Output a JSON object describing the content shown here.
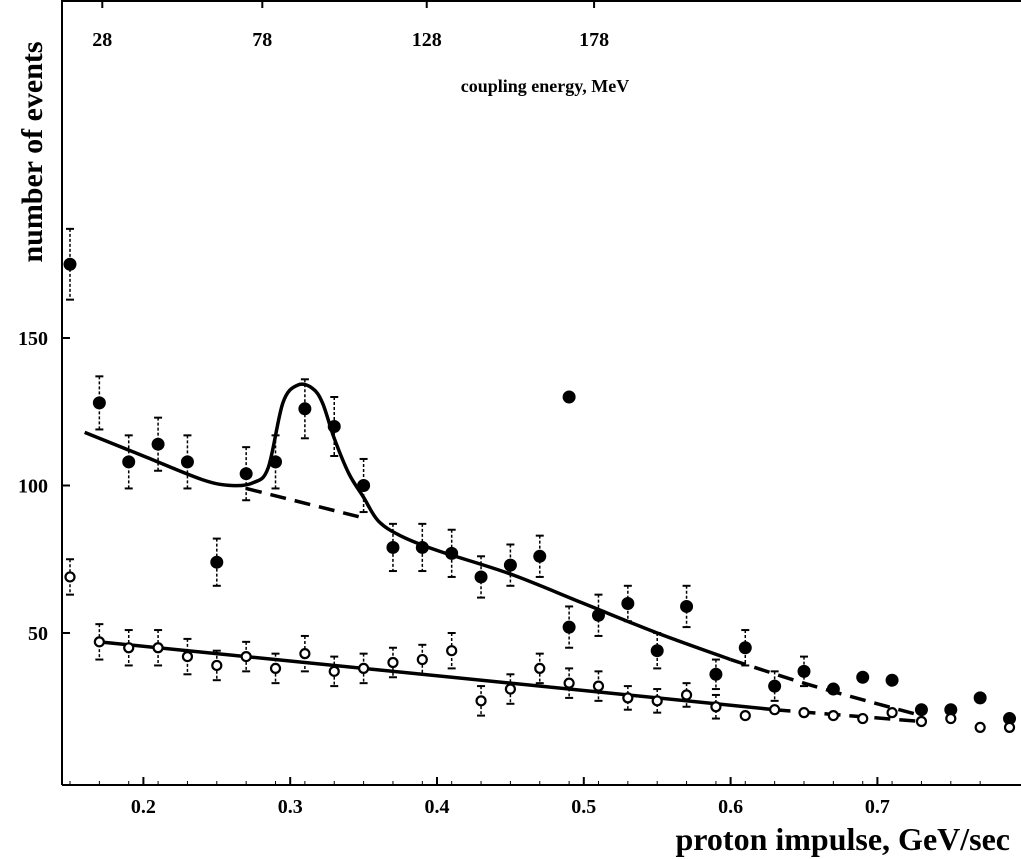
{
  "chart_data": {
    "type": "scatter",
    "title": "",
    "xlabel": "proton impulse,  GeV/sec",
    "ylabel": "number of events",
    "xlim": [
      0.14,
      0.73
    ],
    "ylim": [
      0,
      212
    ],
    "x_ticks": [
      {
        "value": 0.2,
        "label": "0.2"
      },
      {
        "value": 0.3,
        "label": "0.3"
      },
      {
        "value": 0.4,
        "label": "0.4"
      },
      {
        "value": 0.5,
        "label": "0.5"
      },
      {
        "value": 0.6,
        "label": "0.6"
      },
      {
        "value": 0.7,
        "label": "0.7"
      }
    ],
    "y_ticks": [
      {
        "value": 50,
        "label": "50"
      },
      {
        "value": 100,
        "label": "100"
      },
      {
        "value": 150,
        "label": "150"
      }
    ],
    "top_axis": {
      "label": "coupling energy,  MeV",
      "ticks": [
        {
          "x": 0.172,
          "label": "28"
        },
        {
          "x": 0.281,
          "label": "78"
        },
        {
          "x": 0.393,
          "label": "128"
        },
        {
          "x": 0.507,
          "label": "178"
        }
      ]
    },
    "grid": false,
    "legend": "none",
    "series": [
      {
        "marker": "filled",
        "points": [
          {
            "x": 0.15,
            "y": 175,
            "err": 12
          },
          {
            "x": 0.17,
            "y": 128,
            "err": 9
          },
          {
            "x": 0.19,
            "y": 108,
            "err": 9
          },
          {
            "x": 0.21,
            "y": 114,
            "err": 9
          },
          {
            "x": 0.23,
            "y": 108,
            "err": 9
          },
          {
            "x": 0.25,
            "y": 74,
            "err": 8
          },
          {
            "x": 0.27,
            "y": 104,
            "err": 9
          },
          {
            "x": 0.29,
            "y": 108,
            "err": 9
          },
          {
            "x": 0.31,
            "y": 126,
            "err": 10
          },
          {
            "x": 0.33,
            "y": 120,
            "err": 10
          },
          {
            "x": 0.35,
            "y": 100,
            "err": 9
          },
          {
            "x": 0.37,
            "y": 79,
            "err": 8
          },
          {
            "x": 0.39,
            "y": 79,
            "err": 8
          },
          {
            "x": 0.41,
            "y": 77,
            "err": 8
          },
          {
            "x": 0.43,
            "y": 69,
            "err": 7
          },
          {
            "x": 0.45,
            "y": 73,
            "err": 7
          },
          {
            "x": 0.47,
            "y": 76,
            "err": 7
          },
          {
            "x": 0.49,
            "y": 130,
            "err": 0
          },
          {
            "x": 0.49,
            "y": 52,
            "err": 7
          },
          {
            "x": 0.51,
            "y": 56,
            "err": 7
          },
          {
            "x": 0.53,
            "y": 60,
            "err": 6
          },
          {
            "x": 0.55,
            "y": 44,
            "err": 6
          },
          {
            "x": 0.57,
            "y": 59,
            "err": 7
          },
          {
            "x": 0.59,
            "y": 36,
            "err": 5
          },
          {
            "x": 0.61,
            "y": 45,
            "err": 6
          },
          {
            "x": 0.63,
            "y": 32,
            "err": 5
          },
          {
            "x": 0.65,
            "y": 37,
            "err": 5
          },
          {
            "x": 0.67,
            "y": 31,
            "err": 0
          },
          {
            "x": 0.69,
            "y": 35,
            "err": 0
          },
          {
            "x": 0.71,
            "y": 34,
            "err": 0
          },
          {
            "x": 0.73,
            "y": 24,
            "err": 0
          },
          {
            "x": 0.75,
            "y": 24,
            "err": 0
          },
          {
            "x": 0.77,
            "y": 28,
            "err": 0
          },
          {
            "x": 0.79,
            "y": 21,
            "err": 0
          }
        ]
      },
      {
        "marker": "open",
        "points": [
          {
            "x": 0.15,
            "y": 69,
            "err": 6
          },
          {
            "x": 0.17,
            "y": 47,
            "err": 6
          },
          {
            "x": 0.19,
            "y": 45,
            "err": 6
          },
          {
            "x": 0.21,
            "y": 45,
            "err": 6
          },
          {
            "x": 0.23,
            "y": 42,
            "err": 6
          },
          {
            "x": 0.25,
            "y": 39,
            "err": 5
          },
          {
            "x": 0.27,
            "y": 42,
            "err": 5
          },
          {
            "x": 0.29,
            "y": 38,
            "err": 5
          },
          {
            "x": 0.31,
            "y": 43,
            "err": 6
          },
          {
            "x": 0.33,
            "y": 37,
            "err": 5
          },
          {
            "x": 0.35,
            "y": 38,
            "err": 5
          },
          {
            "x": 0.37,
            "y": 40,
            "err": 5
          },
          {
            "x": 0.39,
            "y": 41,
            "err": 5
          },
          {
            "x": 0.41,
            "y": 44,
            "err": 6
          },
          {
            "x": 0.43,
            "y": 27,
            "err": 5
          },
          {
            "x": 0.45,
            "y": 31,
            "err": 5
          },
          {
            "x": 0.47,
            "y": 38,
            "err": 5
          },
          {
            "x": 0.49,
            "y": 33,
            "err": 5
          },
          {
            "x": 0.51,
            "y": 32,
            "err": 5
          },
          {
            "x": 0.53,
            "y": 28,
            "err": 4
          },
          {
            "x": 0.55,
            "y": 27,
            "err": 4
          },
          {
            "x": 0.57,
            "y": 29,
            "err": 4
          },
          {
            "x": 0.59,
            "y": 25,
            "err": 4
          },
          {
            "x": 0.61,
            "y": 22,
            "err": 0
          },
          {
            "x": 0.63,
            "y": 24,
            "err": 0
          },
          {
            "x": 0.65,
            "y": 23,
            "err": 0
          },
          {
            "x": 0.67,
            "y": 22,
            "err": 0
          },
          {
            "x": 0.69,
            "y": 21,
            "err": 0
          },
          {
            "x": 0.71,
            "y": 23,
            "err": 0
          },
          {
            "x": 0.73,
            "y": 20,
            "err": 0
          },
          {
            "x": 0.75,
            "y": 21,
            "err": 0
          },
          {
            "x": 0.77,
            "y": 18,
            "err": 0
          },
          {
            "x": 0.79,
            "y": 18,
            "err": 0
          }
        ]
      }
    ],
    "curves": [
      {
        "name": "resonance-fit",
        "style": "solid",
        "points": [
          [
            0.16,
            118
          ],
          [
            0.2,
            110
          ],
          [
            0.24,
            102
          ],
          [
            0.26,
            100
          ],
          [
            0.275,
            101
          ],
          [
            0.285,
            106
          ],
          [
            0.295,
            128
          ],
          [
            0.305,
            134
          ],
          [
            0.315,
            133
          ],
          [
            0.322,
            128
          ],
          [
            0.33,
            116
          ],
          [
            0.34,
            104
          ],
          [
            0.35,
            96
          ],
          [
            0.36,
            88
          ],
          [
            0.375,
            83
          ],
          [
            0.4,
            78
          ],
          [
            0.45,
            70
          ],
          [
            0.5,
            60
          ],
          [
            0.55,
            50
          ],
          [
            0.6,
            41
          ]
        ]
      },
      {
        "name": "background-upper",
        "style": "dashed",
        "points": [
          [
            0.27,
            99
          ],
          [
            0.35,
            89
          ]
        ]
      },
      {
        "name": "background-upper-tail",
        "style": "dashed",
        "points": [
          [
            0.6,
            41
          ],
          [
            0.65,
            33
          ],
          [
            0.7,
            26
          ],
          [
            0.73,
            22
          ]
        ]
      },
      {
        "name": "background-lower",
        "style": "solid",
        "points": [
          [
            0.17,
            47
          ],
          [
            0.63,
            24
          ]
        ]
      },
      {
        "name": "background-lower-tail",
        "style": "dashed",
        "points": [
          [
            0.63,
            24
          ],
          [
            0.68,
            22
          ],
          [
            0.73,
            20
          ]
        ]
      }
    ]
  }
}
